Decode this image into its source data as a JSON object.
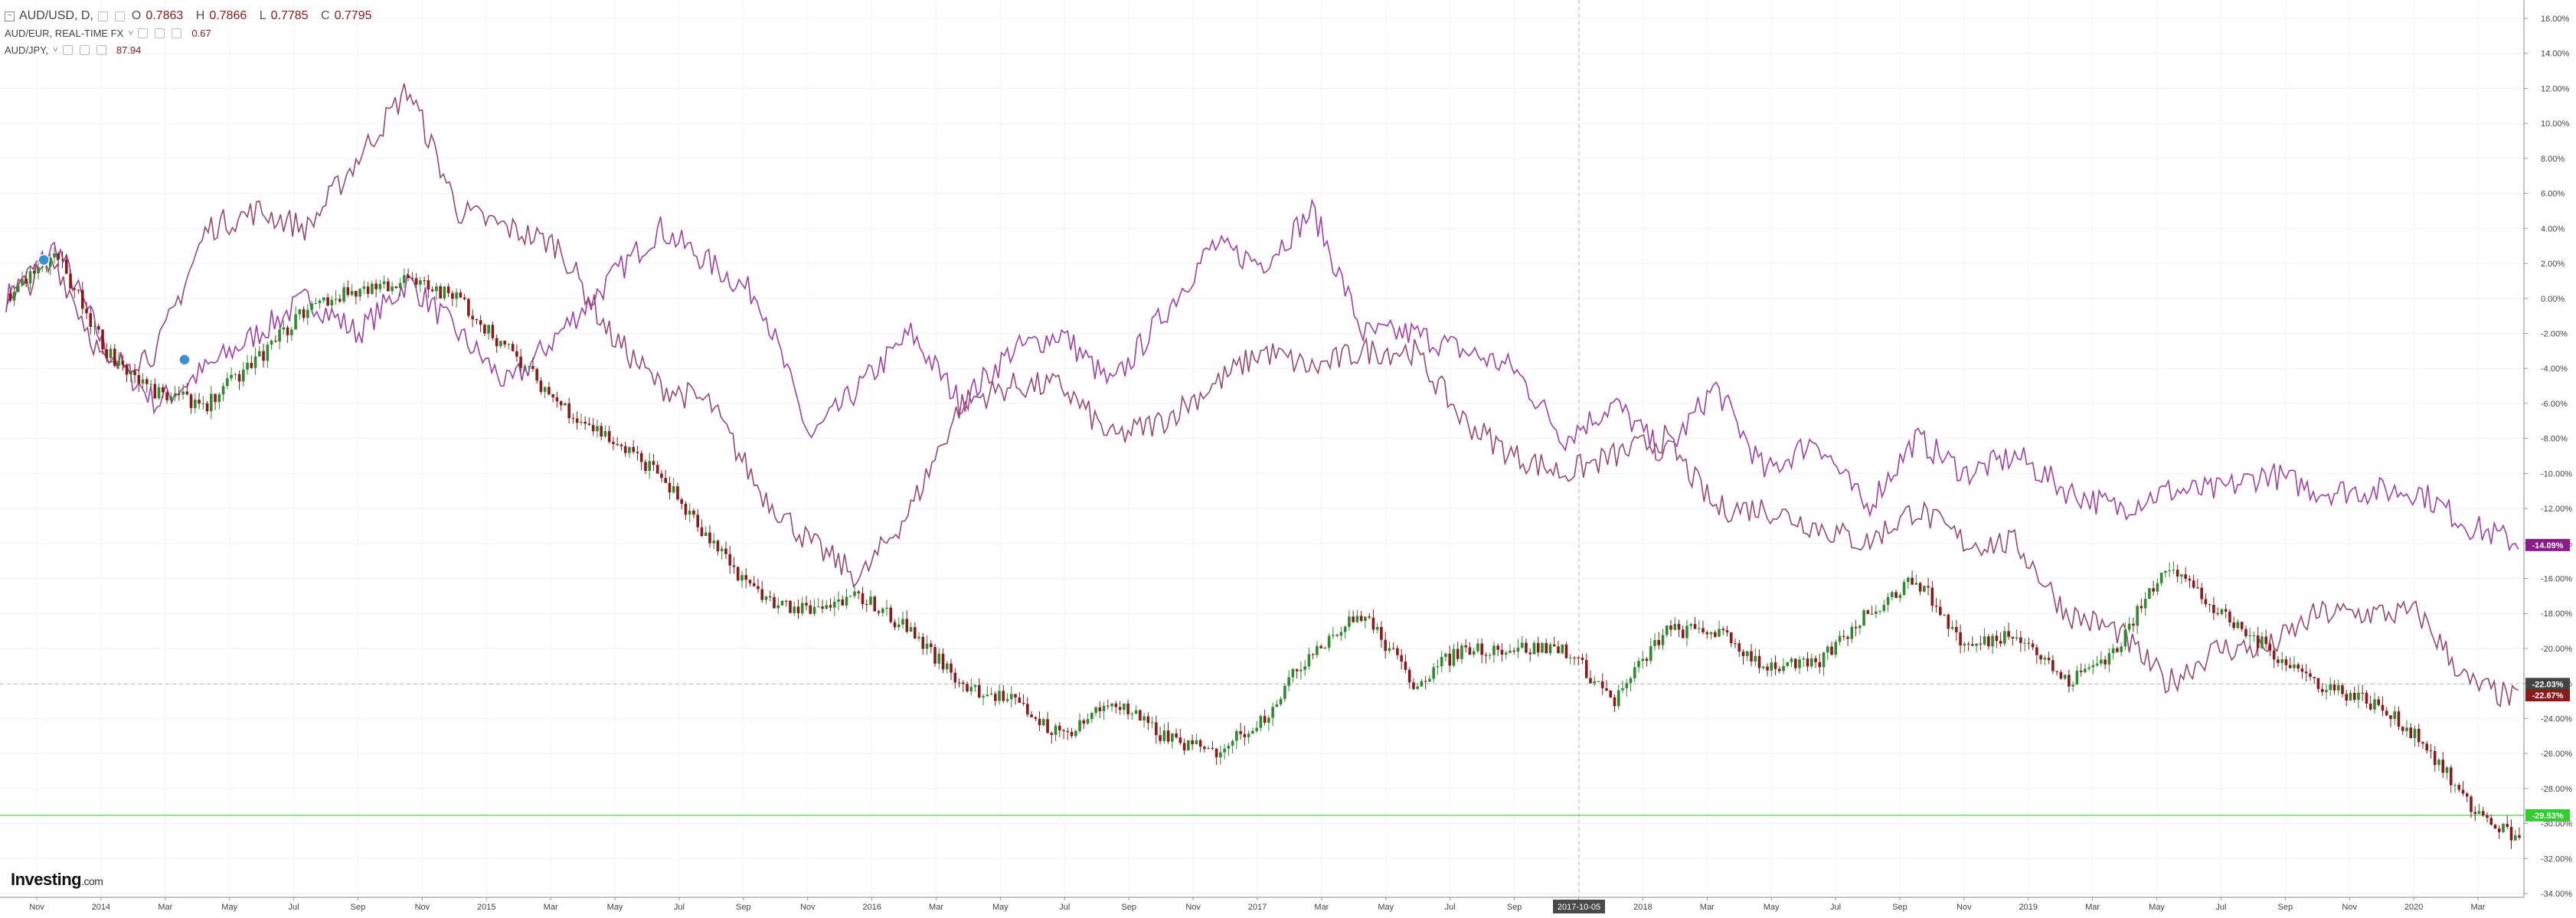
{
  "legend": {
    "main": {
      "symbol": "AUD/USD, D,",
      "o_label": "O",
      "o": "0.7863",
      "h_label": "H",
      "h": "0.7866",
      "l_label": "L",
      "l": "0.7785",
      "c_label": "C",
      "c": "0.7795"
    },
    "series2": {
      "symbol": "AUD/EUR, REAL-TIME FX",
      "value": "0.67"
    },
    "series3": {
      "symbol": "AUD/JPY,",
      "value": "87.94"
    }
  },
  "logo": {
    "name": "Investing",
    "suffix": ".com"
  },
  "crosshair": {
    "date_label": "2017-10-05",
    "price_label": "-22.03%"
  },
  "last_labels": [
    {
      "text": "-14.09%",
      "value": -14.09,
      "color": "#8b1a8b"
    },
    {
      "text": "-22.03%",
      "value": -22.03,
      "color": "#444444"
    },
    {
      "text": "-22.67%",
      "value": -22.67,
      "color": "#8b1a1a"
    },
    {
      "text": "-29.53%",
      "value": -29.53,
      "color": "#33cc33"
    }
  ],
  "chart_data": {
    "type": "line",
    "title": "AUD/USD, D,",
    "ylabel": "",
    "y_unit": "%",
    "ylim": [
      -34,
      16
    ],
    "y_ticks": [
      "16.00%",
      "14.00%",
      "12.00%",
      "10.00%",
      "8.00%",
      "6.00%",
      "4.00%",
      "2.00%",
      "0.00%",
      "-2.00%",
      "-4.00%",
      "-6.00%",
      "-8.00%",
      "-10.00%",
      "-12.00%",
      "-14.00%",
      "-16.00%",
      "-18.00%",
      "-20.00%",
      "-22.00%",
      "-24.00%",
      "-26.00%",
      "-28.00%",
      "-30.00%",
      "-32.00%",
      "-34.00%"
    ],
    "x_ticks": [
      "Nov",
      "2014",
      "Mar",
      "May",
      "Jul",
      "Sep",
      "Nov",
      "2015",
      "Mar",
      "May",
      "Jul",
      "Sep",
      "Nov",
      "2016",
      "Mar",
      "May",
      "Jul",
      "Sep",
      "Nov",
      "2017",
      "Mar",
      "May",
      "Jul",
      "Sep",
      "Nov",
      "2018",
      "Mar",
      "May",
      "Jul",
      "Sep",
      "Nov",
      "2019",
      "Mar",
      "May",
      "Jul",
      "Sep",
      "Nov",
      "2020",
      "Mar"
    ],
    "grid": true,
    "horizontal_line": -29.53,
    "series": [
      {
        "name": "AUD/USD",
        "style": "candles",
        "color": "#2e8b2e",
        "color_down": "#8b1a1a",
        "x": [
          0,
          0.02,
          0.04,
          0.06,
          0.08,
          0.1,
          0.12,
          0.14,
          0.16,
          0.18,
          0.2,
          0.22,
          0.24,
          0.26,
          0.28,
          0.3,
          0.32,
          0.34,
          0.36,
          0.38,
          0.4,
          0.42,
          0.44,
          0.46,
          0.48,
          0.5,
          0.52,
          0.54,
          0.56,
          0.58,
          0.6,
          0.62,
          0.64,
          0.66,
          0.68,
          0.7,
          0.72,
          0.74,
          0.76,
          0.78,
          0.8,
          0.82,
          0.84,
          0.86,
          0.88,
          0.9,
          0.92,
          0.94,
          0.96,
          0.98,
          1
        ],
        "values": [
          0,
          2.5,
          -3,
          -5.5,
          -6,
          -3.5,
          -0.5,
          0.5,
          1,
          0,
          -3,
          -6,
          -8,
          -10,
          -14,
          -17,
          -18,
          -17,
          -19,
          -22,
          -23,
          -25,
          -23,
          -25,
          -26,
          -24,
          -20,
          -18,
          -22,
          -20,
          -20,
          -20,
          -23,
          -19,
          -19,
          -21,
          -21,
          -18,
          -16,
          -20,
          -19,
          -22,
          -20,
          -15,
          -18,
          -20,
          -22,
          -23,
          -25,
          -29,
          -31
        ]
      },
      {
        "name": "AUD/EUR",
        "style": "line",
        "color": "#a040a8",
        "x": [
          0,
          0.02,
          0.04,
          0.06,
          0.08,
          0.1,
          0.12,
          0.14,
          0.16,
          0.18,
          0.2,
          0.22,
          0.24,
          0.26,
          0.28,
          0.3,
          0.32,
          0.34,
          0.36,
          0.38,
          0.4,
          0.42,
          0.44,
          0.46,
          0.48,
          0.5,
          0.52,
          0.54,
          0.56,
          0.58,
          0.6,
          0.62,
          0.64,
          0.66,
          0.68,
          0.7,
          0.72,
          0.74,
          0.76,
          0.78,
          0.8,
          0.82,
          0.84,
          0.86,
          0.88,
          0.9,
          0.92,
          0.94,
          0.96,
          0.98,
          1
        ],
        "values": [
          0,
          3,
          -3,
          -6,
          -4,
          -2,
          0,
          -2,
          1,
          -2,
          -5,
          -2,
          1,
          4,
          2,
          0,
          -8,
          -5,
          -2,
          -6,
          -3,
          -2,
          -5,
          -1,
          3,
          2,
          5,
          -2,
          -2,
          -3,
          -4,
          -8,
          -6,
          -9,
          -5,
          -10,
          -8,
          -12,
          -8,
          -10,
          -9,
          -11,
          -12,
          -11,
          -11,
          -10,
          -11,
          -11,
          -11,
          -13,
          -14
        ]
      },
      {
        "name": "AUD/JPY",
        "style": "line",
        "color": "#9a4870",
        "x": [
          0,
          0.02,
          0.04,
          0.06,
          0.08,
          0.1,
          0.12,
          0.14,
          0.16,
          0.18,
          0.2,
          0.22,
          0.24,
          0.26,
          0.28,
          0.3,
          0.32,
          0.34,
          0.36,
          0.38,
          0.4,
          0.42,
          0.44,
          0.46,
          0.48,
          0.5,
          0.52,
          0.54,
          0.56,
          0.58,
          0.6,
          0.62,
          0.64,
          0.66,
          0.68,
          0.7,
          0.72,
          0.74,
          0.76,
          0.78,
          0.8,
          0.82,
          0.84,
          0.86,
          0.88,
          0.9,
          0.92,
          0.94,
          0.96,
          0.98,
          1
        ],
        "values": [
          0,
          2,
          -4,
          -3,
          4,
          5,
          4,
          8,
          12,
          5,
          4,
          3,
          -2,
          -5,
          -6,
          -11,
          -14,
          -16,
          -12,
          -6,
          -5,
          -5,
          -8,
          -7,
          -5,
          -3,
          -4,
          -3,
          -3,
          -7,
          -9,
          -10,
          -9,
          -8,
          -12,
          -12,
          -13,
          -14,
          -12,
          -14,
          -14,
          -18,
          -19,
          -22,
          -20,
          -20,
          -18,
          -18,
          -18,
          -22,
          -23
        ]
      }
    ]
  }
}
